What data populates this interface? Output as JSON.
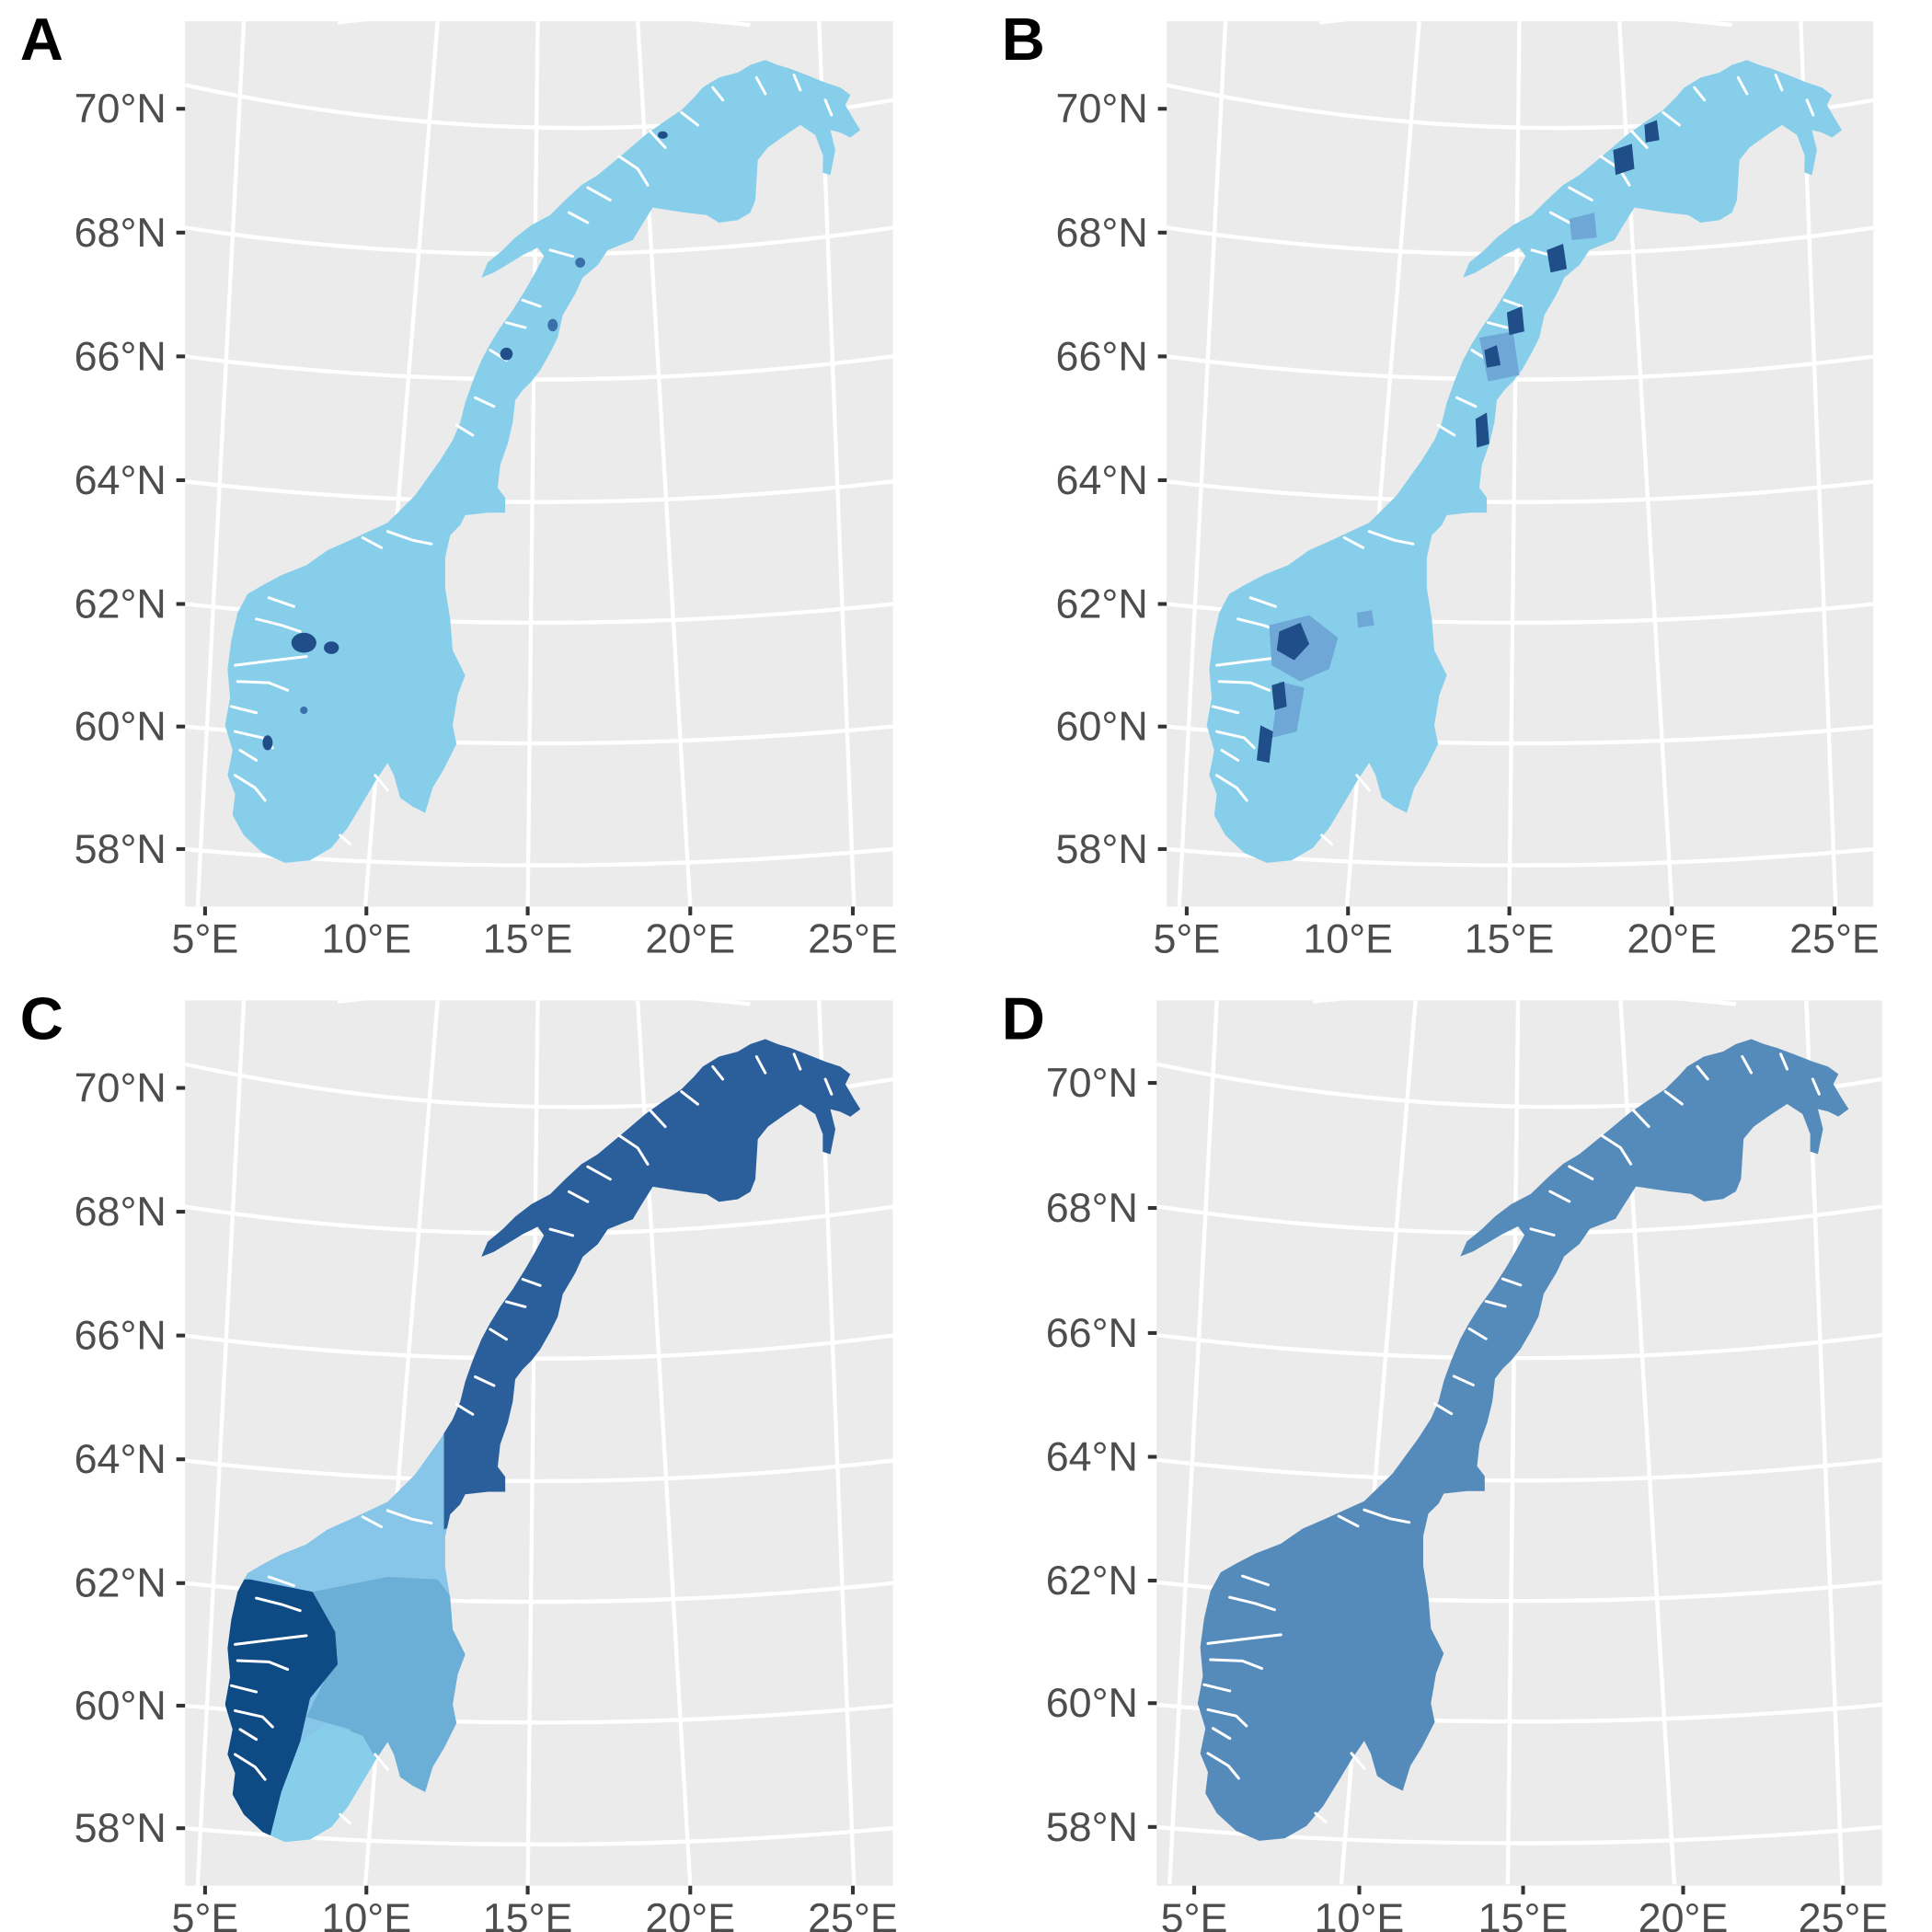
{
  "figure": {
    "background_color": "#EBEBEB",
    "grid_color": "#FFFFFF",
    "panels": [
      {
        "letter": "A",
        "base_color": "#87CEEB",
        "patch_colors": [
          "#1F4E89",
          "#3A6FA8"
        ],
        "lat_labels": [
          "70°N",
          "68°N",
          "66°N",
          "64°N",
          "62°N",
          "60°N",
          "58°N"
        ],
        "lon_labels": [
          "5°E",
          "10°E",
          "15°E",
          "20°E",
          "25°E"
        ]
      },
      {
        "letter": "B",
        "base_color": "#87CEEB",
        "patch_colors": [
          "#1F4E89",
          "#6FA8D6"
        ],
        "lat_labels": [
          "70°N",
          "68°N",
          "66°N",
          "64°N",
          "62°N",
          "60°N",
          "58°N"
        ],
        "lon_labels": [
          "5°E",
          "10°E",
          "15°E",
          "20°E",
          "25°E"
        ]
      },
      {
        "letter": "C",
        "region_colors": {
          "north": "#2B5F9B",
          "mid": "#87C6E8",
          "west": "#0E4A84",
          "east": "#6BAED6",
          "south": "#87CEEB"
        },
        "lat_labels": [
          "70°N",
          "68°N",
          "66°N",
          "64°N",
          "62°N",
          "60°N",
          "58°N"
        ],
        "lon_labels": [
          "5°E",
          "10°E",
          "15°E",
          "20°E",
          "25°E"
        ]
      },
      {
        "letter": "D",
        "base_color": "#558BBB",
        "lat_labels": [
          "70°N",
          "68°N",
          "66°N",
          "64°N",
          "62°N",
          "60°N",
          "58°N"
        ],
        "lon_labels": [
          "5°E",
          "10°E",
          "15°E",
          "20°E",
          "25°E"
        ]
      }
    ]
  }
}
